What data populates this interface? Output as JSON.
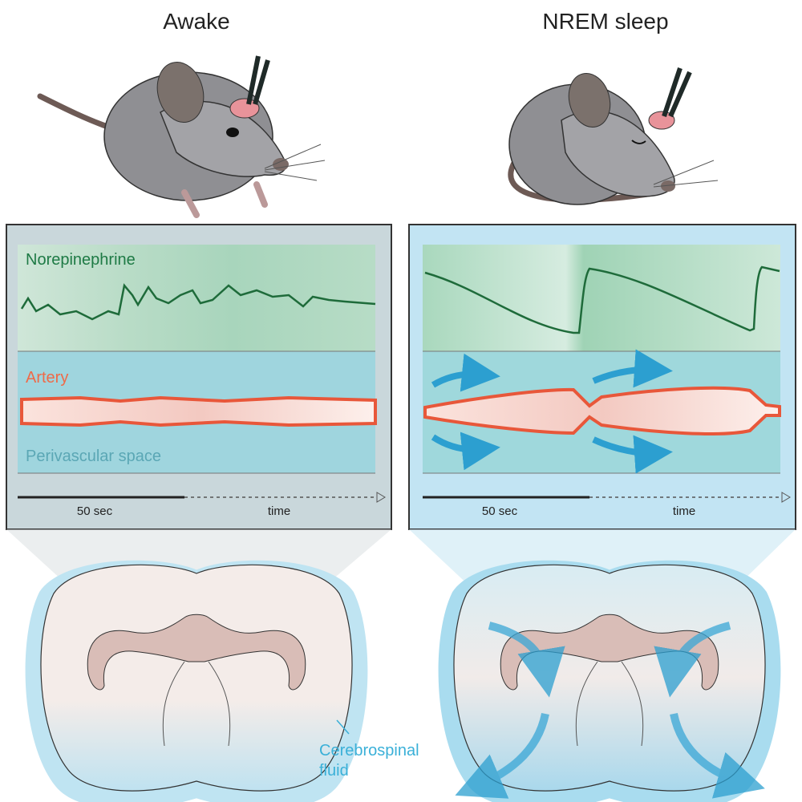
{
  "panels": [
    {
      "title": "Awake",
      "signal_label": "Norepinephrine",
      "vessel_label": "Artery",
      "space_label": "Perivascular space",
      "scale_label": "50 sec",
      "axis_label": "time"
    },
    {
      "title": "NREM sleep",
      "scale_label": "50 sec",
      "axis_label": "time"
    }
  ],
  "annotation": {
    "lines": [
      "Cerebrospinal",
      "fluid"
    ]
  }
}
